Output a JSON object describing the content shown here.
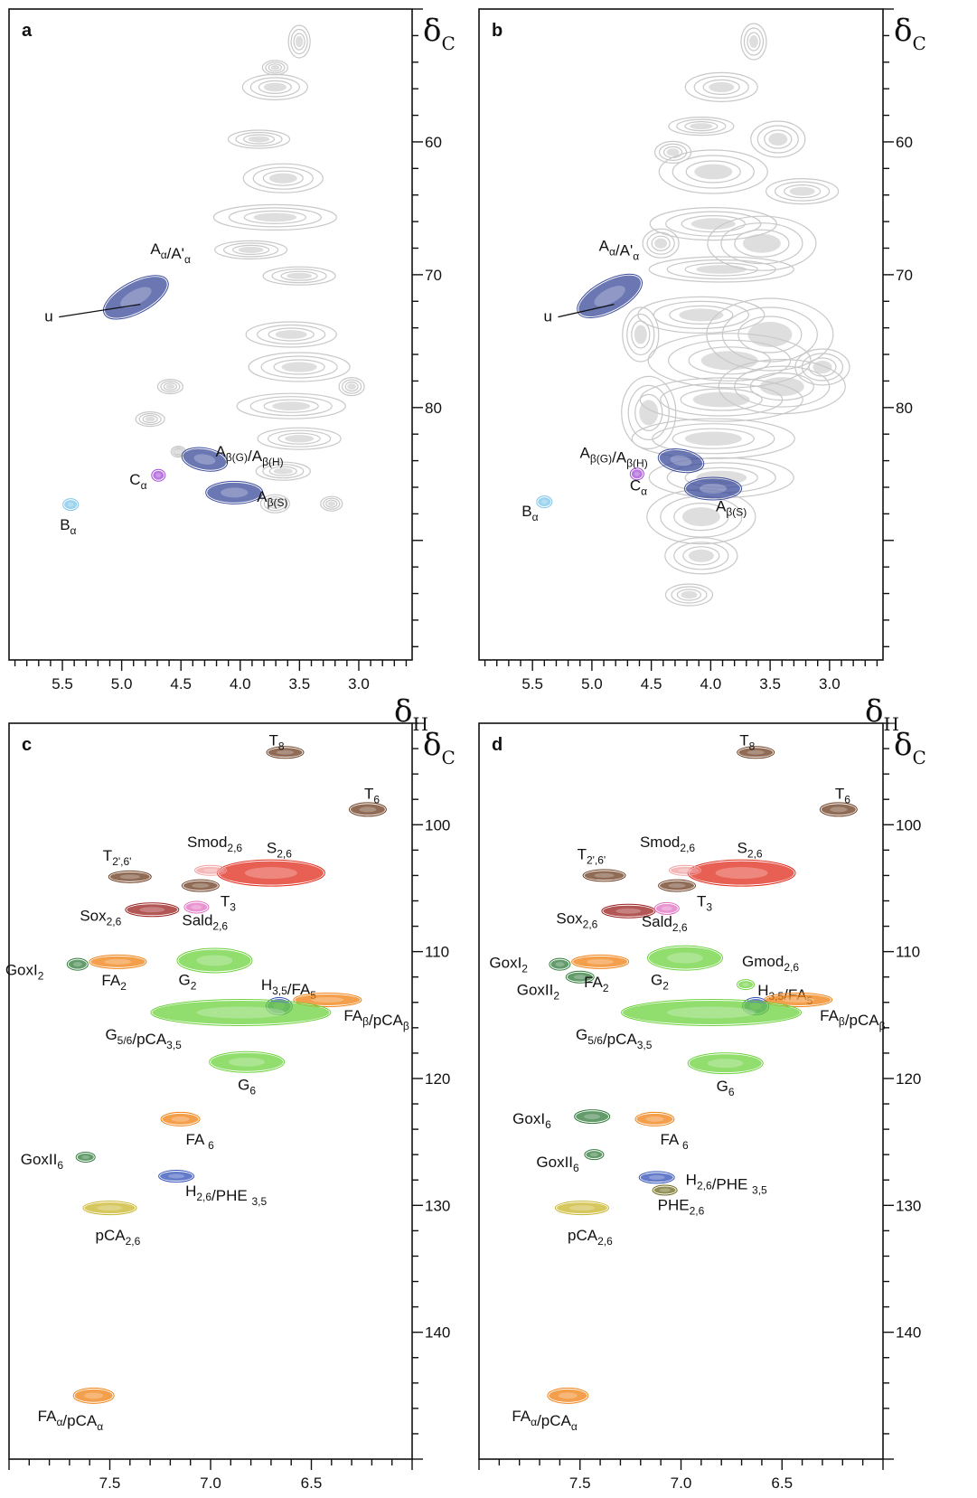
{
  "figure": {
    "colors": {
      "grey": "#c8c8c8",
      "navy": "#3a4a9a",
      "blue": "#2f4fb8",
      "sky": "#7cc4ea",
      "violet": "#a24bd6",
      "brown": "#6b3a1c",
      "darkred": "#9a1e1e",
      "red": "#e02a1a",
      "salmon": "#f0a0a0",
      "pink": "#e070c0",
      "orange": "#f07f10",
      "green": "#6cd13c",
      "darkgreen": "#2f7a3a",
      "olive": "#c8b42a",
      "darkolive": "#6d6a1c"
    },
    "axis_y": {
      "symbol": "δ",
      "subscript": "C"
    },
    "axis_x": {
      "symbol": "δ",
      "subscript": "H"
    }
  },
  "chart_data": [
    {
      "panel": "a",
      "type": "heatmap",
      "xlabel": "δH",
      "ylabel": "δC",
      "xlim": [
        5.95,
        2.55
      ],
      "ylim": [
        50,
        99
      ],
      "xticks": [
        5.5,
        5.0,
        4.5,
        4.0,
        3.5,
        3.0
      ],
      "xtick_labels": [
        "5.5",
        "5.0",
        "4.5",
        "4.0",
        "3.5",
        "3.0"
      ],
      "yticks": [
        60,
        70,
        80
      ],
      "ytick_labels": [
        "60",
        "70",
        "80"
      ],
      "series": [
        {
          "name": "Aα/A'α",
          "color": "navy",
          "points": [
            [
              4.88,
              71.7
            ]
          ]
        },
        {
          "name": "u",
          "color": "navy",
          "points": [
            [
              4.98,
              72.5
            ]
          ]
        },
        {
          "name": "Aβ(G)/Aβ(H)",
          "color": "navy",
          "points": [
            [
              4.3,
              83.9
            ]
          ]
        },
        {
          "name": "Cα",
          "color": "violet",
          "points": [
            [
              4.69,
              85.1
            ]
          ]
        },
        {
          "name": "Aβ(S)",
          "color": "navy",
          "points": [
            [
              4.05,
              86.4
            ]
          ]
        },
        {
          "name": "Bα",
          "color": "sky",
          "points": [
            [
              5.43,
              87.3
            ]
          ]
        }
      ]
    },
    {
      "panel": "b",
      "type": "heatmap",
      "xlabel": "δH",
      "ylabel": "δC",
      "xlim": [
        5.95,
        2.55
      ],
      "ylim": [
        50,
        99
      ],
      "xticks": [
        5.5,
        5.0,
        4.5,
        4.0,
        3.5,
        3.0
      ],
      "xtick_labels": [
        "5.5",
        "5.0",
        "4.5",
        "4.0",
        "3.5",
        "3.0"
      ],
      "yticks": [
        60,
        70,
        80
      ],
      "ytick_labels": [
        "60",
        "70",
        "80"
      ],
      "series": [
        {
          "name": "Aα/A'α",
          "color": "navy",
          "points": [
            [
              4.85,
              71.6
            ]
          ]
        },
        {
          "name": "u",
          "color": "navy",
          "points": [
            [
              4.95,
              72.5
            ]
          ]
        },
        {
          "name": "Aβ(G)/Aβ(H)",
          "color": "navy",
          "points": [
            [
              4.25,
              84.0
            ]
          ]
        },
        {
          "name": "Cα",
          "color": "violet",
          "points": [
            [
              4.62,
              85.0
            ]
          ]
        },
        {
          "name": "Aβ(S)",
          "color": "navy",
          "points": [
            [
              3.98,
              86.1
            ]
          ]
        },
        {
          "name": "Bα",
          "color": "sky",
          "points": [
            [
              5.4,
              87.1
            ]
          ]
        }
      ]
    },
    {
      "panel": "c",
      "type": "heatmap",
      "xlabel": "δH",
      "ylabel": "δC",
      "xlim": [
        8.0,
        6.0
      ],
      "ylim": [
        92,
        150
      ],
      "xticks": [
        7.5,
        7.0,
        6.5
      ],
      "xtick_labels": [
        "7.5",
        "7.0",
        "6.5"
      ],
      "yticks": [
        100,
        110,
        120,
        130,
        140
      ],
      "ytick_labels": [
        "100",
        "110",
        "120",
        "130",
        "140"
      ],
      "series": [
        {
          "name": "T8",
          "color": "brown",
          "points": [
            [
              6.63,
              94.3
            ]
          ]
        },
        {
          "name": "T6",
          "color": "brown",
          "points": [
            [
              6.22,
              98.8
            ]
          ]
        },
        {
          "name": "S2,6",
          "color": "red",
          "points": [
            [
              6.7,
              103.8
            ]
          ]
        },
        {
          "name": "Smod2,6",
          "color": "salmon",
          "points": [
            [
              7.0,
              103.6
            ]
          ]
        },
        {
          "name": "T2',6'",
          "color": "brown",
          "points": [
            [
              7.4,
              104.1
            ]
          ]
        },
        {
          "name": "T3",
          "color": "brown",
          "points": [
            [
              7.05,
              104.8
            ]
          ]
        },
        {
          "name": "Sox2,6",
          "color": "darkred",
          "points": [
            [
              7.29,
              106.7
            ]
          ]
        },
        {
          "name": "Sald2,6",
          "color": "pink",
          "points": [
            [
              7.07,
              106.5
            ]
          ]
        },
        {
          "name": "GoxI2",
          "color": "darkgreen",
          "points": [
            [
              7.66,
              111.0
            ]
          ]
        },
        {
          "name": "FA2",
          "color": "orange",
          "points": [
            [
              7.46,
              110.8
            ]
          ]
        },
        {
          "name": "G2",
          "color": "green",
          "points": [
            [
              6.98,
              110.7
            ]
          ]
        },
        {
          "name": "H3,5/FA5",
          "color": "blue",
          "points": [
            [
              6.66,
              114.3
            ]
          ]
        },
        {
          "name": "FAβ/pCAβ",
          "color": "orange",
          "points": [
            [
              6.42,
              113.8
            ]
          ]
        },
        {
          "name": "G5/6/pCA3,5",
          "color": "green",
          "points": [
            [
              6.85,
              114.8
            ]
          ]
        },
        {
          "name": "G6",
          "color": "green",
          "points": [
            [
              6.82,
              118.7
            ]
          ]
        },
        {
          "name": "FA6",
          "color": "orange",
          "points": [
            [
              7.15,
              123.2
            ]
          ]
        },
        {
          "name": "GoxII6",
          "color": "darkgreen",
          "points": [
            [
              7.62,
              126.2
            ]
          ]
        },
        {
          "name": "H2,6/PHE3,5",
          "color": "blue",
          "points": [
            [
              7.17,
              127.7
            ]
          ]
        },
        {
          "name": "pCA2,6",
          "color": "olive",
          "points": [
            [
              7.5,
              130.2
            ]
          ]
        },
        {
          "name": "FAα/pCAα",
          "color": "orange",
          "points": [
            [
              7.58,
              145.0
            ]
          ]
        }
      ]
    },
    {
      "panel": "d",
      "type": "heatmap",
      "xlabel": "δH",
      "ylabel": "δC",
      "xlim": [
        8.0,
        6.0
      ],
      "ylim": [
        92,
        150
      ],
      "xticks": [
        7.5,
        7.0,
        6.5
      ],
      "xtick_labels": [
        "7.5",
        "7.0",
        "6.5"
      ],
      "yticks": [
        100,
        110,
        120,
        130,
        140
      ],
      "ytick_labels": [
        "100",
        "110",
        "120",
        "130",
        "140"
      ],
      "series": [
        {
          "name": "T8",
          "color": "brown",
          "points": [
            [
              6.63,
              94.3
            ]
          ]
        },
        {
          "name": "T6",
          "color": "brown",
          "points": [
            [
              6.22,
              98.8
            ]
          ]
        },
        {
          "name": "S2,6",
          "color": "red",
          "points": [
            [
              6.7,
              103.8
            ]
          ]
        },
        {
          "name": "Smod2,6",
          "color": "salmon",
          "points": [
            [
              6.98,
              103.6
            ]
          ]
        },
        {
          "name": "T2',6'",
          "color": "brown",
          "points": [
            [
              7.38,
              104.0
            ]
          ]
        },
        {
          "name": "T3",
          "color": "brown",
          "points": [
            [
              7.02,
              104.8
            ]
          ]
        },
        {
          "name": "Sox2,6",
          "color": "darkred",
          "points": [
            [
              7.26,
              106.8
            ]
          ]
        },
        {
          "name": "Sald2,6",
          "color": "pink",
          "points": [
            [
              7.07,
              106.6
            ]
          ]
        },
        {
          "name": "GoxI2",
          "color": "darkgreen",
          "points": [
            [
              7.6,
              111.0
            ]
          ]
        },
        {
          "name": "GoxII2",
          "color": "darkgreen",
          "points": [
            [
              7.5,
              112.0
            ]
          ]
        },
        {
          "name": "FA2",
          "color": "orange",
          "points": [
            [
              7.4,
              110.8
            ]
          ]
        },
        {
          "name": "G2",
          "color": "green",
          "points": [
            [
              6.98,
              110.5
            ]
          ]
        },
        {
          "name": "Gmod2,6",
          "color": "green",
          "points": [
            [
              6.68,
              112.6
            ]
          ]
        },
        {
          "name": "H3,5/FA5",
          "color": "blue",
          "points": [
            [
              6.63,
              114.3
            ]
          ]
        },
        {
          "name": "FAβ/pCAβ",
          "color": "orange",
          "points": [
            [
              6.42,
              113.8
            ]
          ]
        },
        {
          "name": "G5/6/pCA3,5",
          "color": "green",
          "points": [
            [
              6.85,
              114.8
            ]
          ]
        },
        {
          "name": "G6",
          "color": "green",
          "points": [
            [
              6.78,
              118.8
            ]
          ]
        },
        {
          "name": "GoxI6",
          "color": "darkgreen",
          "points": [
            [
              7.44,
              123.0
            ]
          ]
        },
        {
          "name": "FA6",
          "color": "orange",
          "points": [
            [
              7.13,
              123.2
            ]
          ]
        },
        {
          "name": "GoxII6",
          "color": "darkgreen",
          "points": [
            [
              7.43,
              126.0
            ]
          ]
        },
        {
          "name": "H2,6/PHE3,5",
          "color": "blue",
          "points": [
            [
              7.12,
              127.8
            ]
          ]
        },
        {
          "name": "PHE2,6",
          "color": "darkolive",
          "points": [
            [
              7.08,
              128.8
            ]
          ]
        },
        {
          "name": "pCA2,6",
          "color": "olive",
          "points": [
            [
              7.49,
              130.2
            ]
          ]
        },
        {
          "name": "FAα/pCAα",
          "color": "orange",
          "points": [
            [
              7.56,
              145.0
            ]
          ]
        }
      ]
    }
  ]
}
